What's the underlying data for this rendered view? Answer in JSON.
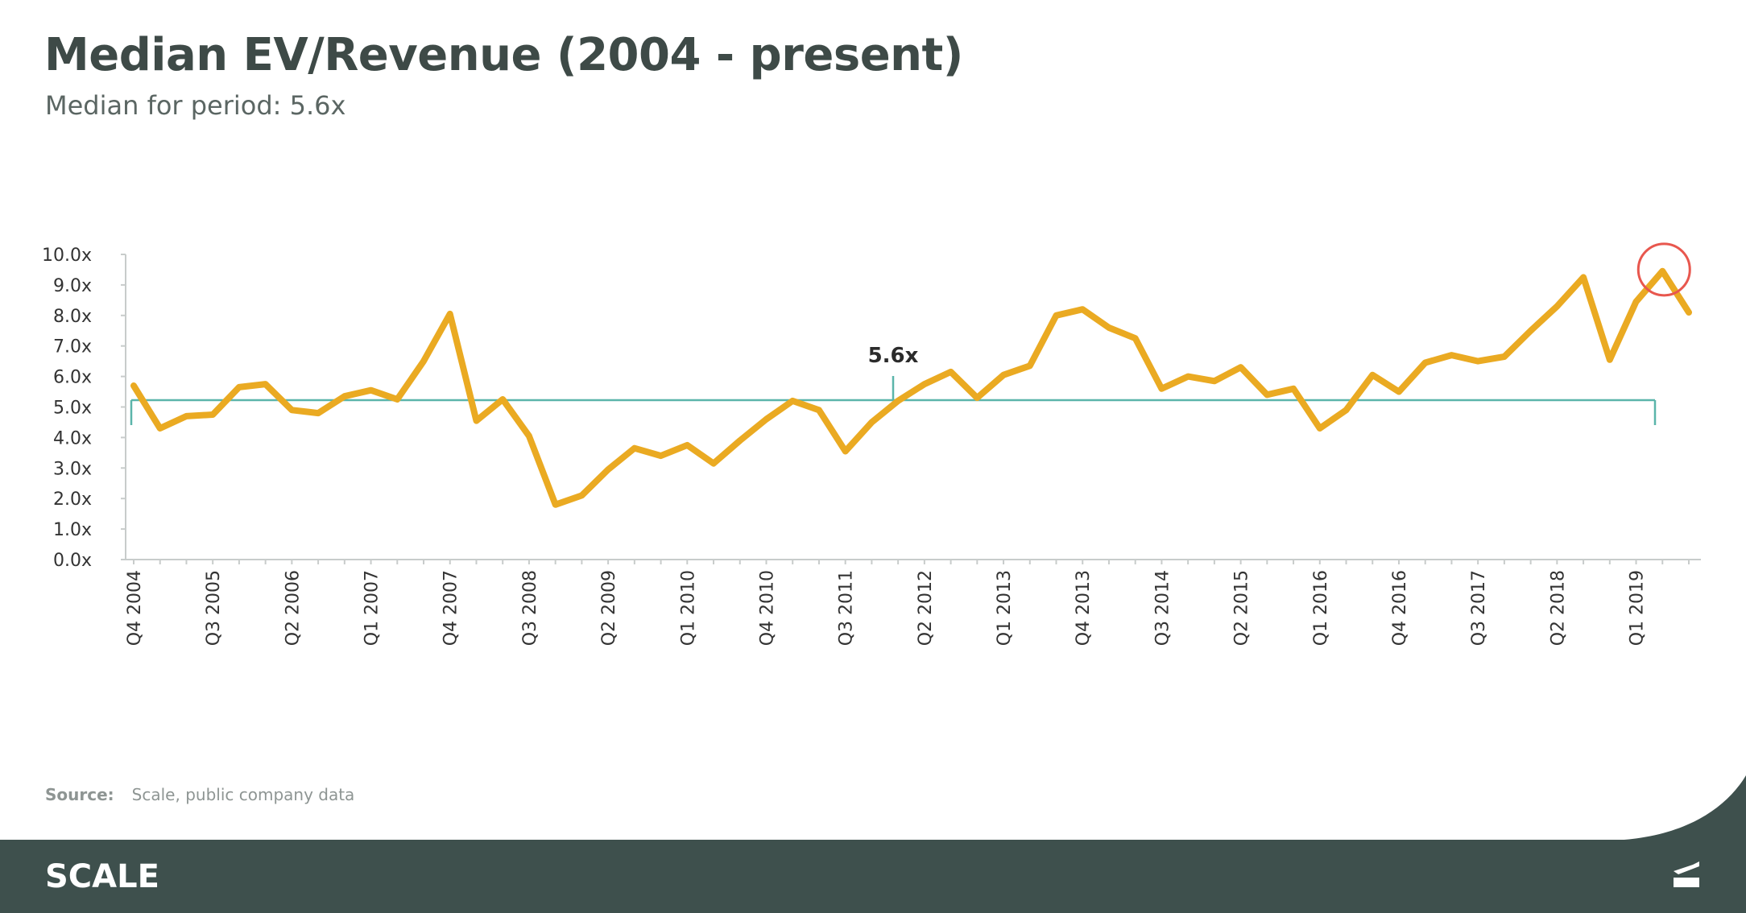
{
  "title": "Median EV/Revenue (2004 - present)",
  "subtitle": "Median for period: 5.6x",
  "source": {
    "label": "Source:",
    "text": "Scale, public company data"
  },
  "footer": {
    "logo": "SCALE",
    "icon": "scale-mark-icon"
  },
  "colors": {
    "series": "#EAAA22",
    "median_bracket": "#5BB5AA",
    "highlight_circle": "#E8574E",
    "axis": "#C8CCCB",
    "footer_bg": "#3E504D"
  },
  "chart_data": {
    "type": "line",
    "title": "Median EV/Revenue (2004 - present)",
    "xlabel": "",
    "ylabel": "",
    "ylim": [
      0,
      10
    ],
    "y_ticks": [
      "0.0x",
      "1.0x",
      "2.0x",
      "3.0x",
      "4.0x",
      "5.0x",
      "6.0x",
      "7.0x",
      "8.0x",
      "9.0x",
      "10.0x"
    ],
    "x_tick_labels": [
      {
        "index": 0,
        "label": "Q4 2004"
      },
      {
        "index": 3,
        "label": "Q3 2005"
      },
      {
        "index": 6,
        "label": "Q2 2006"
      },
      {
        "index": 9,
        "label": "Q1 2007"
      },
      {
        "index": 12,
        "label": "Q4 2007"
      },
      {
        "index": 15,
        "label": "Q3 2008"
      },
      {
        "index": 18,
        "label": "Q2 2009"
      },
      {
        "index": 21,
        "label": "Q1 2010"
      },
      {
        "index": 24,
        "label": "Q4 2010"
      },
      {
        "index": 27,
        "label": "Q3 2011"
      },
      {
        "index": 30,
        "label": "Q2 2012"
      },
      {
        "index": 33,
        "label": "Q1 2013"
      },
      {
        "index": 36,
        "label": "Q4 2013"
      },
      {
        "index": 39,
        "label": "Q3 2014"
      },
      {
        "index": 42,
        "label": "Q2 2015"
      },
      {
        "index": 45,
        "label": "Q1 2016"
      },
      {
        "index": 48,
        "label": "Q4 2016"
      },
      {
        "index": 51,
        "label": "Q3 2017"
      },
      {
        "index": 54,
        "label": "Q2 2018"
      },
      {
        "index": 57,
        "label": "Q1 2019"
      }
    ],
    "series": [
      {
        "values": [
          5.7,
          4.3,
          4.7,
          4.75,
          5.65,
          5.75,
          4.9,
          4.8,
          5.35,
          5.55,
          5.25,
          6.5,
          8.05,
          4.55,
          5.25,
          4.05,
          1.8,
          2.1,
          2.95,
          3.65,
          3.4,
          3.75,
          3.15,
          3.9,
          4.6,
          5.2,
          4.9,
          3.55,
          4.5,
          5.2,
          5.75,
          6.15,
          5.3,
          6.05,
          6.35,
          8.0,
          8.2,
          7.6,
          7.25,
          5.6,
          6.0,
          5.85,
          6.3,
          5.4,
          5.6,
          4.3,
          4.9,
          6.05,
          5.5,
          6.45,
          6.7,
          6.5,
          6.65,
          7.5,
          8.3,
          9.25,
          6.55,
          8.45,
          9.45,
          8.1
        ]
      }
    ],
    "median_annotation": {
      "label": "5.6x"
    },
    "highlight": {
      "index": 58,
      "value": 9.45
    },
    "grid": false,
    "legend": "none"
  }
}
